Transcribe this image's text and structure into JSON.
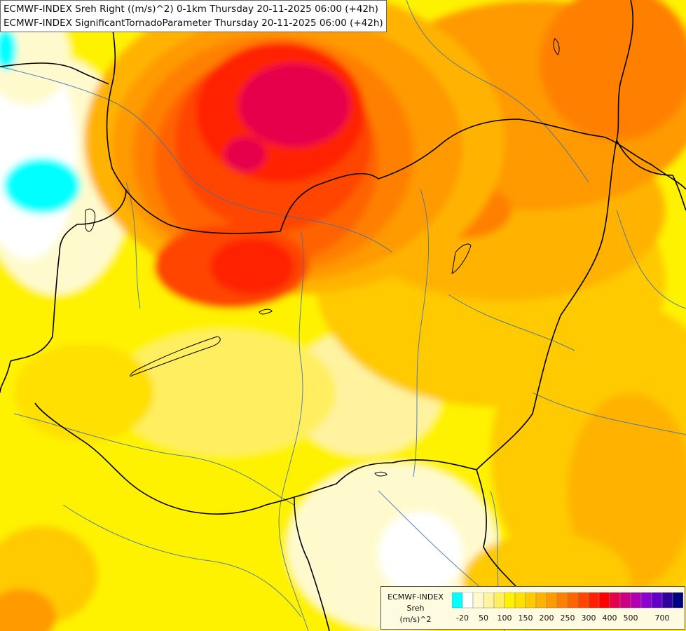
{
  "title": {
    "line1": "ECMWF-INDEX Sreh Right ((m/s)^2) 0-1km Thursday 20-11-2025 06:00 (+42h)",
    "line2": "ECMWF-INDEX SignificantTornadoParameter Thursday 20-11-2025 06:00 (+42h)"
  },
  "legend": {
    "model": "ECMWF-INDEX",
    "variable": "Sreh",
    "unit": "(m/s)^2",
    "colors": [
      "#00ffff",
      "#ffffff",
      "#fffacd",
      "#fff3a0",
      "#ffef60",
      "#fff200",
      "#ffe000",
      "#ffca00",
      "#ffb300",
      "#ff9a00",
      "#ff8000",
      "#ff6400",
      "#ff4500",
      "#ff2200",
      "#ff0000",
      "#e6004c",
      "#cc0080",
      "#b000b0",
      "#8c00d0",
      "#6000c8",
      "#3000a0",
      "#000080"
    ],
    "ticks": [
      "-20",
      "50",
      "100",
      "150",
      "200",
      "250",
      "300",
      "400",
      "500",
      "700"
    ]
  }
}
